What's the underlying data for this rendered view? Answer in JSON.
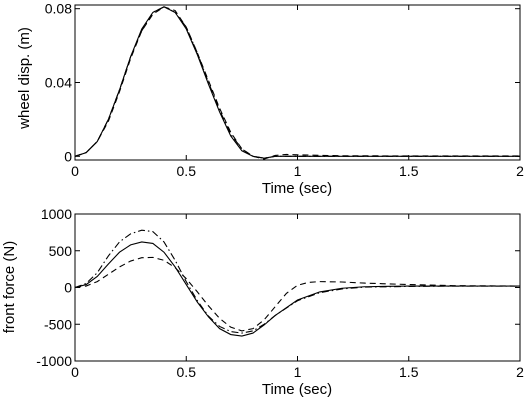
{
  "chart_data": [
    {
      "type": "line",
      "title": "",
      "xlabel": "Time (sec)",
      "ylabel": "wheel disp. (m)",
      "xlim": [
        0,
        2
      ],
      "ylim": [
        -0.002,
        0.082
      ],
      "xticks": [
        0,
        0.5,
        1,
        1.5,
        2
      ],
      "xtick_labels": [
        "0",
        "0.5",
        "1",
        "1.5",
        "2"
      ],
      "yticks": [
        0,
        0.04,
        0.08
      ],
      "ytick_labels": [
        "0",
        "0.04",
        "0.08"
      ],
      "grid": false,
      "series": [
        {
          "style": "solid",
          "x": [
            0,
            0.05,
            0.1,
            0.15,
            0.2,
            0.25,
            0.3,
            0.35,
            0.4,
            0.45,
            0.5,
            0.55,
            0.6,
            0.65,
            0.7,
            0.75,
            0.8,
            0.85,
            0.9,
            1.0,
            1.2,
            1.5,
            2.0
          ],
          "values": [
            0,
            0.002,
            0.008,
            0.02,
            0.036,
            0.054,
            0.069,
            0.078,
            0.081,
            0.078,
            0.069,
            0.055,
            0.039,
            0.024,
            0.011,
            0.003,
            0,
            -0.001,
            0,
            0,
            0,
            0,
            0
          ]
        },
        {
          "style": "dashed",
          "x": [
            0,
            0.05,
            0.1,
            0.15,
            0.2,
            0.25,
            0.3,
            0.35,
            0.4,
            0.45,
            0.5,
            0.55,
            0.6,
            0.65,
            0.7,
            0.75,
            0.8,
            0.85,
            0.9,
            0.95,
            1.0,
            1.1,
            1.2,
            1.5,
            2.0
          ],
          "values": [
            0,
            0.002,
            0.008,
            0.019,
            0.035,
            0.053,
            0.068,
            0.077,
            0.081,
            0.079,
            0.07,
            0.056,
            0.041,
            0.026,
            0.013,
            0.004,
            0,
            -0.0015,
            0.0005,
            0.001,
            0.0008,
            0.0005,
            0.0003,
            0.0002,
            0.0002
          ]
        },
        {
          "style": "dashdot",
          "x": [
            0,
            0.05,
            0.1,
            0.15,
            0.2,
            0.25,
            0.3,
            0.35,
            0.4,
            0.45,
            0.5,
            0.55,
            0.6,
            0.65,
            0.7,
            0.75,
            0.8,
            0.85,
            0.9,
            1.0,
            1.2,
            1.5,
            2.0
          ],
          "values": [
            0,
            0.002,
            0.008,
            0.02,
            0.036,
            0.054,
            0.068,
            0.078,
            0.081,
            0.078,
            0.07,
            0.056,
            0.04,
            0.025,
            0.012,
            0.004,
            0,
            -0.001,
            0,
            0,
            0,
            0,
            0
          ]
        }
      ]
    },
    {
      "type": "line",
      "title": "",
      "xlabel": "Time (sec)",
      "ylabel": "front force (N)",
      "xlim": [
        0,
        2
      ],
      "ylim": [
        -1000,
        1000
      ],
      "xticks": [
        0,
        0.5,
        1,
        1.5,
        2
      ],
      "xtick_labels": [
        "0",
        "0.5",
        "1",
        "1.5",
        "2"
      ],
      "yticks": [
        1000,
        500,
        0,
        -500,
        -1000
      ],
      "ytick_labels": [
        "1000",
        "500",
        "0",
        "-500",
        "-1000"
      ],
      "grid": false,
      "series": [
        {
          "style": "solid",
          "x": [
            0,
            0.05,
            0.1,
            0.15,
            0.2,
            0.25,
            0.3,
            0.35,
            0.4,
            0.45,
            0.5,
            0.55,
            0.6,
            0.65,
            0.7,
            0.75,
            0.8,
            0.85,
            0.9,
            1.0,
            1.1,
            1.2,
            1.3,
            1.5,
            1.7,
            2.0
          ],
          "values": [
            0,
            40,
            150,
            320,
            480,
            580,
            620,
            600,
            480,
            280,
            40,
            -200,
            -400,
            -560,
            -640,
            -660,
            -620,
            -510,
            -380,
            -170,
            -60,
            -10,
            10,
            20,
            20,
            20
          ]
        },
        {
          "style": "dashed",
          "x": [
            0,
            0.05,
            0.1,
            0.15,
            0.2,
            0.25,
            0.3,
            0.35,
            0.4,
            0.45,
            0.5,
            0.55,
            0.6,
            0.65,
            0.7,
            0.75,
            0.8,
            0.85,
            0.9,
            0.95,
            1.0,
            1.05,
            1.1,
            1.2,
            1.3,
            1.5,
            1.7,
            2.0
          ],
          "values": [
            0,
            20,
            80,
            180,
            280,
            360,
            405,
            410,
            370,
            270,
            120,
            -60,
            -250,
            -420,
            -540,
            -590,
            -560,
            -440,
            -260,
            -80,
            30,
            70,
            80,
            75,
            60,
            40,
            25,
            20
          ]
        },
        {
          "style": "dashdot",
          "x": [
            0,
            0.05,
            0.1,
            0.15,
            0.2,
            0.25,
            0.3,
            0.35,
            0.4,
            0.45,
            0.5,
            0.55,
            0.6,
            0.65,
            0.7,
            0.75,
            0.8,
            0.85,
            0.9,
            1.0,
            1.1,
            1.2,
            1.3,
            1.5,
            1.7,
            2.0
          ],
          "values": [
            0,
            55,
            200,
            430,
            620,
            730,
            780,
            760,
            620,
            370,
            80,
            -180,
            -390,
            -530,
            -600,
            -620,
            -590,
            -500,
            -380,
            -180,
            -70,
            -20,
            5,
            15,
            20,
            20
          ]
        }
      ]
    }
  ]
}
